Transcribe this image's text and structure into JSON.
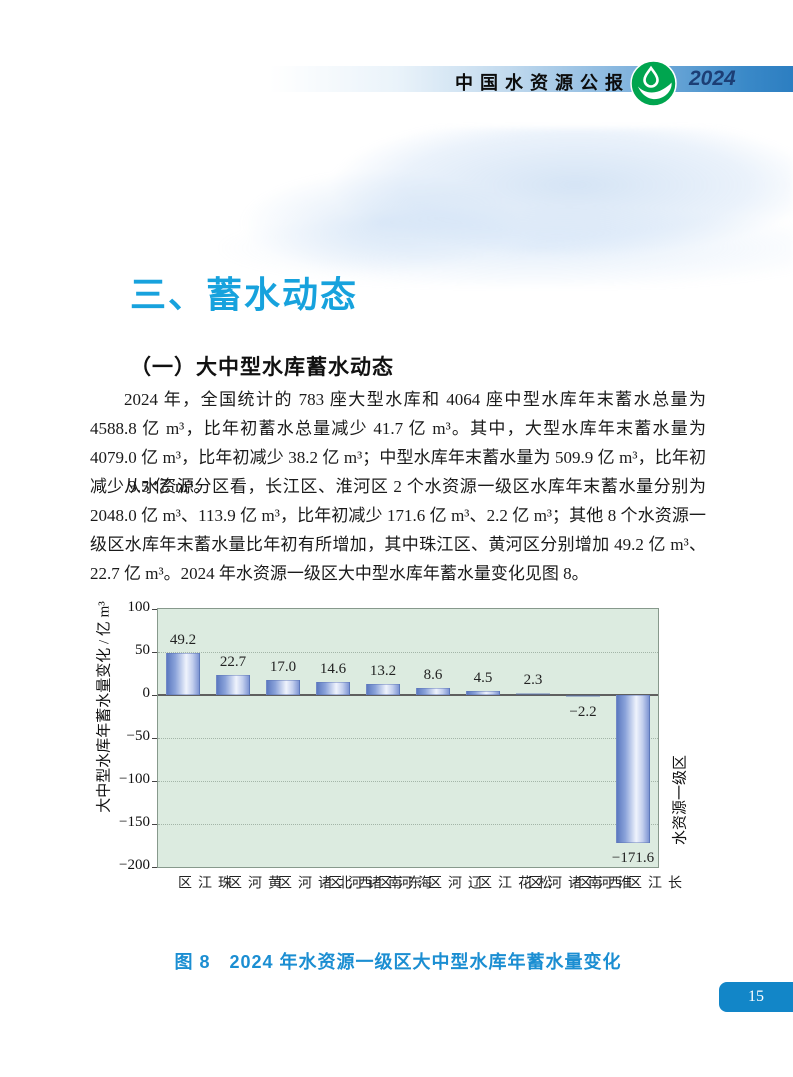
{
  "header": {
    "title": "中国水资源公报",
    "year": "2024",
    "logo": "water-drop-hand-logo",
    "logo_green": "#00a54f"
  },
  "section": {
    "title": "三、蓄水动态",
    "subtitle": "（一）大中型水库蓄水动态"
  },
  "paragraphs": {
    "p1": "2024 年，全国统计的 783 座大型水库和 4064 座中型水库年末蓄水总量为 4588.8 亿 m³，比年初蓄水总量减少 41.7 亿 m³。其中，大型水库年末蓄水量为 4079.0 亿 m³，比年初减少 38.2 亿 m³；中型水库年末蓄水量为 509.9 亿 m³，比年初减少 3.5 亿 m³。",
    "p2": "从水资源分区看，长江区、淮河区 2 个水资源一级区水库年末蓄水量分别为 2048.0 亿 m³、113.9 亿 m³，比年初减少 171.6 亿 m³、2.2 亿 m³；其他 8 个水资源一级区水库年末蓄水量比年初有所增加，其中珠江区、黄河区分别增加 49.2 亿 m³、22.7 亿 m³。2024 年水资源一级区大中型水库年蓄水量变化见图 8。"
  },
  "figure": {
    "caption": "图 8　2024 年水资源一级区大中型水库年蓄水量变化"
  },
  "chart_data": {
    "type": "bar",
    "title": "",
    "categories": [
      "珠江区",
      "黄河区",
      "西北诸河区",
      "东南诸河区",
      "海河区",
      "辽河区",
      "松花江区",
      "西南诸河区",
      "淮河区",
      "长江区"
    ],
    "values": [
      49.2,
      22.7,
      17.0,
      14.6,
      13.2,
      8.6,
      4.5,
      2.3,
      -2.2,
      -171.6
    ],
    "value_labels": [
      "49.2",
      "22.7",
      "17.0",
      "14.6",
      "13.2",
      "8.6",
      "4.5",
      "2.3",
      "−2.2",
      "−171.6"
    ],
    "ylabel": "大中型水库年蓄水量变化 / 亿 m³",
    "xlabel": "水资源一级区",
    "ylim": [
      -200,
      100
    ],
    "yticks": [
      100,
      50,
      0,
      -50,
      -100,
      -150,
      -200
    ],
    "ytick_labels": [
      "100",
      "50",
      "0",
      "−50",
      "−100",
      "−150",
      "−200"
    ],
    "grid": "horizontal dotted gridlines every 50, solid dark zero line",
    "legend": "none",
    "plot_bg": "#dcebe0",
    "bar_gradient": [
      "#5c79c0",
      "#eff3fc",
      "#7e95d3"
    ]
  },
  "page": {
    "number": "15"
  }
}
